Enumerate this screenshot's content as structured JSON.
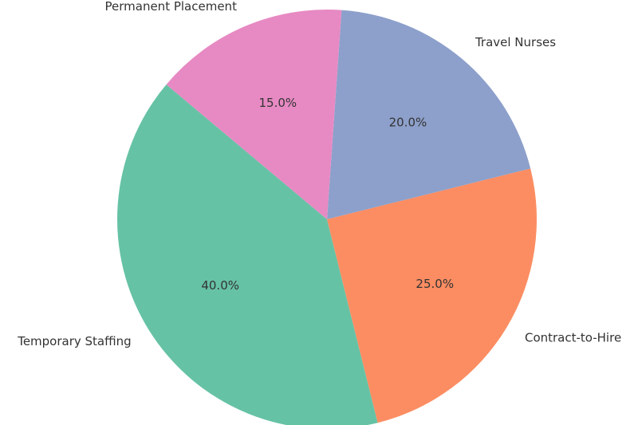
{
  "chart_data": {
    "type": "pie",
    "categories": [
      "Temporary Staffing",
      "Contract-to-Hire",
      "Travel Nurses",
      "Permanent Placement"
    ],
    "values": [
      40,
      25,
      20,
      15
    ],
    "value_labels": [
      "40.0%",
      "25.0%",
      "20.0%",
      "15.0%"
    ],
    "colors": [
      "#66c2a5",
      "#fc8d62",
      "#8da0cb",
      "#e78ac3"
    ]
  }
}
